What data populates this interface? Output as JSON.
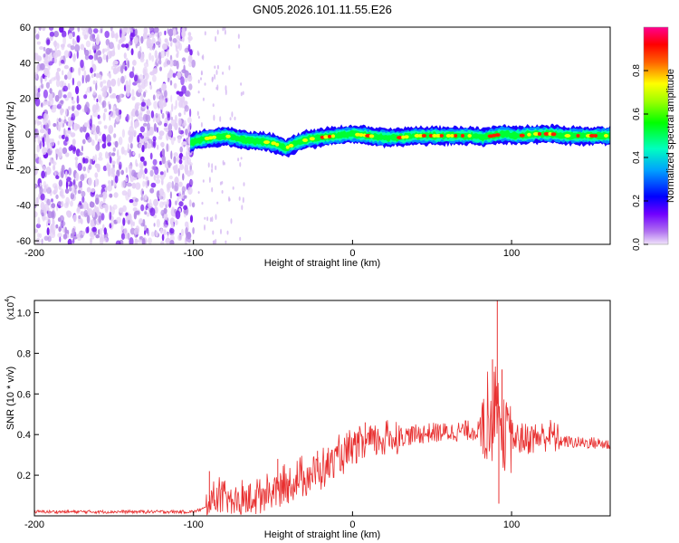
{
  "chart_data": [
    {
      "type": "heatmap",
      "title": "GN05.2026.101.11.55.E26",
      "xlabel": "Height of straight line (km)",
      "ylabel": "Frequency (Hz)",
      "xlim": [
        -200,
        162
      ],
      "ylim": [
        -62,
        60
      ],
      "x_ticks": [
        -200,
        -100,
        0,
        100
      ],
      "x_tick_labels": [
        "-200",
        "-100",
        "0",
        "100"
      ],
      "y_ticks": [
        60,
        40,
        20,
        0,
        -20,
        -40,
        -60
      ],
      "y_tick_labels": [
        "60",
        "40",
        "20",
        "0",
        "-20",
        "-40",
        "-60"
      ],
      "colorbar": {
        "label": "Normalized spectral amplitude",
        "range": [
          0,
          1
        ],
        "ticks": [
          0.0,
          0.2,
          0.4,
          0.6,
          0.8
        ],
        "tick_labels": [
          "0.0",
          "0.2",
          "0.4",
          "0.6",
          "0.8"
        ],
        "colormap": [
          "#d8b8f0",
          "#8c00ff",
          "#0000ff",
          "#00b0ff",
          "#00ffa0",
          "#00ff00",
          "#ffff00",
          "#ff8000",
          "#ff0000",
          "#ff0090"
        ]
      },
      "features": {
        "noise_region_x": [
          -200,
          -100
        ],
        "band_centerline": {
          "x": [
            -102,
            -95,
            -88,
            -80,
            -70,
            -60,
            -50,
            -42,
            -35,
            -28,
            -20,
            -10,
            0,
            10,
            20,
            30,
            40,
            50,
            60,
            70,
            75,
            82,
            88,
            95,
            105,
            115,
            125,
            135,
            145,
            162
          ],
          "freq": [
            -5,
            -3,
            -2,
            -1,
            -3,
            -4,
            -5,
            -8,
            -5,
            -3,
            -2,
            -1,
            0,
            -1,
            -2,
            -2,
            -1,
            -1,
            -1,
            -1,
            -1,
            -2,
            -1,
            0,
            -1,
            0,
            0,
            -1,
            -1,
            -1
          ]
        },
        "band_halfwidth_hz": 5
      }
    },
    {
      "type": "line",
      "xlabel": "Height of straight line (km)",
      "ylabel": "SNR (10 * v/v)",
      "y_scale_label": "(x10",
      "y_scale_exp": "4",
      "xlim": [
        -200,
        162
      ],
      "ylim": [
        0,
        1.06
      ],
      "x_ticks": [
        -200,
        -100,
        0,
        100
      ],
      "x_tick_labels": [
        "-200",
        "-100",
        "0",
        "100"
      ],
      "y_ticks": [
        0.2,
        0.4,
        0.6,
        0.8,
        1.0
      ],
      "y_tick_labels": [
        "0.2",
        "0.4",
        "0.6",
        "0.8",
        "1.0"
      ],
      "series": [
        {
          "name": "SNR",
          "color": "#e83030",
          "x": [
            -200,
            -150,
            -110,
            -100,
            -92,
            -88,
            -85,
            -80,
            -75,
            -70,
            -60,
            -50,
            -40,
            -30,
            -20,
            -10,
            0,
            10,
            20,
            30,
            40,
            50,
            60,
            70,
            80,
            85,
            88,
            90,
            92,
            95,
            100,
            110,
            120,
            125,
            130,
            140,
            150,
            162
          ],
          "y": [
            0.02,
            0.02,
            0.02,
            0.02,
            0.04,
            0.08,
            0.1,
            0.08,
            0.06,
            0.07,
            0.1,
            0.12,
            0.15,
            0.2,
            0.22,
            0.28,
            0.32,
            0.36,
            0.38,
            0.39,
            0.4,
            0.41,
            0.41,
            0.42,
            0.42,
            0.43,
            0.45,
            0.6,
            0.5,
            0.4,
            0.38,
            0.38,
            0.39,
            0.4,
            0.37,
            0.36,
            0.36,
            0.35
          ],
          "spikes": [
            {
              "x": -90,
              "y": 0.22
            },
            {
              "x": -47,
              "y": 0.28
            },
            {
              "x": -22,
              "y": 0.32
            },
            {
              "x": 8,
              "y": 0.46
            },
            {
              "x": 82,
              "y": 0.55
            },
            {
              "x": 88,
              "y": 0.77
            },
            {
              "x": 91,
              "y": 1.06
            },
            {
              "x": 92,
              "y": 0.06
            },
            {
              "x": 94,
              "y": 0.72
            }
          ]
        }
      ]
    }
  ]
}
